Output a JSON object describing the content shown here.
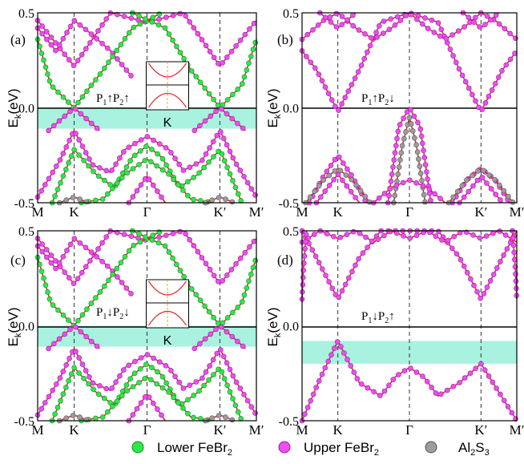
{
  "colors": {
    "band": "#e6262b",
    "lower_fill": "#2ee84a",
    "lower_edge": "#0d8f22",
    "upper_fill": "#ec4ef0",
    "upper_edge": "#9a1ca0",
    "al_fill": "#9d9d9d",
    "al_edge": "#555555",
    "gap": "#a8f2df",
    "fermi": "#000000",
    "dash": "#333333"
  },
  "legend": [
    {
      "key": "lower",
      "label_main": "Lower FeBr",
      "label_sub": "2"
    },
    {
      "key": "upper",
      "label_main": "Upper FeBr",
      "label_sub": "2"
    },
    {
      "key": "al",
      "label_main": "Al",
      "label_sub1": "2",
      "label_mid": "S",
      "label_sub2": "3"
    }
  ],
  "chart_data": [
    {
      "panel": "(a)",
      "type": "line",
      "xticks": [
        "M",
        "K",
        "Γ",
        "K′",
        "M′"
      ],
      "xtick_pos": [
        0,
        0.5,
        1.5,
        2.5,
        3
      ],
      "ylabel_main": "E",
      "ylabel_sub": "k",
      "ylabel_unit": "(eV)",
      "ylim": [
        -0.5,
        0.5
      ],
      "yticks": [
        "-0.5",
        "0.0",
        "0.5"
      ],
      "gap": [
        -0.11,
        0.0
      ],
      "config": {
        "p1": "P",
        "s1": "1",
        "a1": "↑",
        "p2": "P",
        "s2": "2",
        "a2": "↑"
      },
      "inset": {
        "label": "K"
      },
      "series": [
        {
          "key": "upper",
          "x": [
            0,
            0.5,
            1.0,
            1.5,
            2.0,
            2.5,
            3.0
          ],
          "y": [
            0.46,
            0.22,
            0.5,
            0.45,
            0.5,
            0.22,
            0.46
          ]
        },
        {
          "key": "upper",
          "x": [
            0,
            0.25,
            0.5,
            0.7,
            1.0,
            1.3
          ],
          "y": [
            0.42,
            0.3,
            0.46,
            0.4,
            0.3,
            0.16
          ]
        },
        {
          "key": "lower",
          "x": [
            0,
            0.18,
            0.5,
            0.9,
            1.3,
            1.7
          ],
          "y": [
            0.36,
            0.12,
            0.0,
            0.2,
            0.42,
            0.5
          ]
        },
        {
          "key": "lower",
          "x": [
            1.3,
            1.75,
            2.1,
            2.5,
            2.8,
            3.0
          ],
          "y": [
            0.5,
            0.42,
            0.2,
            0.0,
            0.12,
            0.36
          ]
        },
        {
          "key": "upper",
          "x": [
            0,
            0.3,
            0.5,
            0.75,
            1.0,
            1.2,
            1.5,
            1.8,
            2.0,
            2.25,
            2.5,
            2.7,
            3.0
          ],
          "y": [
            -0.47,
            -0.28,
            -0.12,
            -0.3,
            -0.34,
            -0.22,
            -0.15,
            -0.22,
            -0.33,
            -0.28,
            -0.12,
            -0.28,
            -0.47
          ]
        },
        {
          "key": "upper",
          "x": [
            0.15,
            0.5,
            0.85
          ],
          "y": [
            -0.12,
            0.0,
            -0.12
          ]
        },
        {
          "key": "upper",
          "x": [
            2.15,
            2.5,
            2.85
          ],
          "y": [
            -0.12,
            0.0,
            -0.12
          ]
        },
        {
          "key": "lower",
          "x": [
            0.2,
            0.5,
            0.8,
            1.05,
            1.3,
            1.5,
            1.7,
            1.95,
            2.2,
            2.5,
            2.8
          ],
          "y": [
            -0.5,
            -0.22,
            -0.35,
            -0.42,
            -0.26,
            -0.2,
            -0.26,
            -0.42,
            -0.35,
            -0.22,
            -0.5
          ]
        },
        {
          "key": "lower",
          "x": [
            0.6,
            0.9,
            1.2,
            1.5,
            1.8,
            2.1,
            2.4
          ],
          "y": [
            -0.5,
            -0.48,
            -0.35,
            -0.27,
            -0.35,
            -0.48,
            -0.5
          ]
        },
        {
          "key": "upper",
          "x": [
            1.25,
            1.5,
            1.75
          ],
          "y": [
            -0.5,
            -0.36,
            -0.5
          ]
        },
        {
          "key": "al",
          "x": [
            0.3,
            0.5,
            0.7
          ],
          "y": [
            -0.5,
            -0.47,
            -0.5
          ]
        },
        {
          "key": "al",
          "x": [
            2.3,
            2.5,
            2.7
          ],
          "y": [
            -0.5,
            -0.47,
            -0.5
          ]
        }
      ]
    },
    {
      "panel": "(b)",
      "type": "line",
      "xticks": [
        "M",
        "K",
        "Γ",
        "K′",
        "M′"
      ],
      "xtick_pos": [
        0,
        0.5,
        1.5,
        2.5,
        3
      ],
      "ylabel_main": "E",
      "ylabel_sub": "k",
      "ylabel_unit": "(eV)",
      "ylim": [
        -0.5,
        0.5
      ],
      "yticks": [
        "-0.5",
        "0.0",
        "0.5"
      ],
      "gap": null,
      "config": {
        "p1": "P",
        "s1": "1",
        "a1": "↑",
        "p2": "P",
        "s2": "2",
        "a2": "↓"
      },
      "inset": null,
      "series": [
        {
          "key": "upper",
          "x": [
            0,
            0.2,
            0.5,
            0.8,
            1.1,
            1.5,
            1.9,
            2.2,
            2.5,
            2.8,
            3.0
          ],
          "y": [
            0.3,
            0.2,
            -0.02,
            0.2,
            0.45,
            0.5,
            0.45,
            0.2,
            -0.02,
            0.2,
            0.3
          ]
        },
        {
          "key": "upper",
          "x": [
            0,
            0.3,
            0.5,
            0.75,
            1.0,
            1.25,
            1.5,
            1.75,
            2.0,
            2.25,
            2.5,
            2.7,
            3.0
          ],
          "y": [
            0.36,
            0.46,
            0.5,
            0.42,
            0.36,
            0.42,
            0.5,
            0.42,
            0.36,
            0.42,
            0.5,
            0.46,
            0.36
          ]
        },
        {
          "key": "upper",
          "x": [
            0.25,
            0.5,
            0.75
          ],
          "y": [
            0.5,
            0.42,
            0.5
          ]
        },
        {
          "key": "upper",
          "x": [
            2.25,
            2.5,
            2.75
          ],
          "y": [
            0.5,
            0.42,
            0.5
          ]
        },
        {
          "key": "upper",
          "x": [
            1.2,
            1.35,
            1.5,
            1.65,
            1.8
          ],
          "y": [
            -0.5,
            -0.1,
            0.0,
            -0.1,
            -0.5
          ]
        },
        {
          "key": "al",
          "x": [
            1.28,
            1.4,
            1.5,
            1.6,
            1.72
          ],
          "y": [
            -0.5,
            -0.2,
            -0.05,
            -0.2,
            -0.5
          ]
        },
        {
          "key": "upper",
          "x": [
            0.1,
            0.3,
            0.5,
            0.7,
            0.9
          ],
          "y": [
            -0.5,
            -0.36,
            -0.25,
            -0.36,
            -0.5
          ]
        },
        {
          "key": "al",
          "x": [
            0.05,
            0.3,
            0.5,
            0.7,
            0.95
          ],
          "y": [
            -0.5,
            -0.38,
            -0.32,
            -0.38,
            -0.5
          ]
        },
        {
          "key": "upper",
          "x": [
            0.2,
            0.5,
            0.8
          ],
          "y": [
            -0.5,
            -0.35,
            -0.5
          ]
        },
        {
          "key": "upper",
          "x": [
            2.1,
            2.3,
            2.5,
            2.7,
            2.9
          ],
          "y": [
            -0.5,
            -0.38,
            -0.32,
            -0.38,
            -0.5
          ]
        },
        {
          "key": "al",
          "x": [
            2.05,
            2.3,
            2.5,
            2.7,
            2.95
          ],
          "y": [
            -0.5,
            -0.38,
            -0.32,
            -0.38,
            -0.5
          ]
        },
        {
          "key": "upper",
          "x": [
            2.2,
            2.5,
            2.8
          ],
          "y": [
            -0.5,
            -0.36,
            -0.5
          ]
        },
        {
          "key": "upper",
          "x": [
            1.0,
            1.25,
            1.5,
            1.75,
            2.0
          ],
          "y": [
            -0.5,
            -0.42,
            -0.38,
            -0.42,
            -0.5
          ]
        }
      ]
    },
    {
      "panel": "(c)",
      "type": "line",
      "xticks": [
        "M",
        "K",
        "Γ",
        "K′",
        "M′"
      ],
      "xtick_pos": [
        0,
        0.5,
        1.5,
        2.5,
        3
      ],
      "ylabel_main": "E",
      "ylabel_sub": "k",
      "ylabel_unit": "(eV)",
      "ylim": [
        -0.5,
        0.5
      ],
      "yticks": [
        "-0.5",
        "0.0",
        "0.5"
      ],
      "gap": [
        -0.11,
        0.0
      ],
      "config": {
        "p1": "P",
        "s1": "1",
        "a1": "↓",
        "p2": "P",
        "s2": "2",
        "a2": "↓"
      },
      "inset": {
        "label": "K"
      },
      "series": [
        {
          "key": "upper",
          "x": [
            0,
            0.5,
            1.0,
            1.5,
            2.0,
            2.5,
            3.0
          ],
          "y": [
            0.46,
            0.22,
            0.5,
            0.45,
            0.5,
            0.22,
            0.46
          ]
        },
        {
          "key": "upper",
          "x": [
            0,
            0.25,
            0.5,
            0.7,
            1.0,
            1.3
          ],
          "y": [
            0.42,
            0.3,
            0.46,
            0.4,
            0.3,
            0.16
          ]
        },
        {
          "key": "lower",
          "x": [
            0,
            0.18,
            0.5,
            0.9,
            1.3,
            1.7
          ],
          "y": [
            0.36,
            0.12,
            0.0,
            0.2,
            0.42,
            0.5
          ]
        },
        {
          "key": "lower",
          "x": [
            1.3,
            1.75,
            2.1,
            2.5,
            2.8,
            3.0
          ],
          "y": [
            0.5,
            0.42,
            0.2,
            0.0,
            0.12,
            0.36
          ]
        },
        {
          "key": "upper",
          "x": [
            0,
            0.3,
            0.5,
            0.75,
            1.0,
            1.2,
            1.5,
            1.8,
            2.0,
            2.25,
            2.5,
            2.7,
            3.0
          ],
          "y": [
            -0.47,
            -0.28,
            -0.12,
            -0.3,
            -0.34,
            -0.22,
            -0.15,
            -0.22,
            -0.33,
            -0.28,
            -0.12,
            -0.28,
            -0.47
          ]
        },
        {
          "key": "upper",
          "x": [
            0.15,
            0.5,
            0.85
          ],
          "y": [
            -0.12,
            0.0,
            -0.12
          ]
        },
        {
          "key": "upper",
          "x": [
            2.15,
            2.5,
            2.85
          ],
          "y": [
            -0.12,
            0.0,
            -0.12
          ]
        },
        {
          "key": "lower",
          "x": [
            0.2,
            0.5,
            0.8,
            1.05,
            1.3,
            1.5,
            1.7,
            1.95,
            2.2,
            2.5,
            2.8
          ],
          "y": [
            -0.5,
            -0.22,
            -0.35,
            -0.42,
            -0.26,
            -0.2,
            -0.26,
            -0.42,
            -0.35,
            -0.22,
            -0.5
          ]
        },
        {
          "key": "lower",
          "x": [
            0.6,
            0.9,
            1.2,
            1.5,
            1.8,
            2.1,
            2.4
          ],
          "y": [
            -0.5,
            -0.48,
            -0.35,
            -0.27,
            -0.35,
            -0.48,
            -0.5
          ]
        },
        {
          "key": "upper",
          "x": [
            1.25,
            1.5,
            1.75
          ],
          "y": [
            -0.5,
            -0.36,
            -0.5
          ]
        },
        {
          "key": "al",
          "x": [
            0.3,
            0.5,
            0.7
          ],
          "y": [
            -0.5,
            -0.47,
            -0.5
          ]
        },
        {
          "key": "al",
          "x": [
            2.3,
            2.5,
            2.7
          ],
          "y": [
            -0.5,
            -0.47,
            -0.5
          ]
        }
      ]
    },
    {
      "panel": "(d)",
      "type": "line",
      "xticks": [
        "M",
        "K",
        "Γ",
        "K′",
        "M′"
      ],
      "xtick_pos": [
        0,
        0.5,
        1.5,
        2.5,
        3
      ],
      "ylabel_main": "E",
      "ylabel_sub": "k",
      "ylabel_unit": "(eV)",
      "ylim": [
        -0.5,
        0.5
      ],
      "yticks": [
        "-0.5",
        "0.0",
        "0.5"
      ],
      "gap": [
        -0.2,
        -0.08
      ],
      "config": {
        "p1": "P",
        "s1": "1",
        "a1": "↓",
        "p2": "P",
        "s2": "2",
        "a2": "↑"
      },
      "inset": null,
      "series": [
        {
          "key": "upper",
          "x": [
            0,
            0.2,
            0.5,
            0.8,
            1.1,
            1.5,
            1.9,
            2.2,
            2.5,
            2.8,
            3.0
          ],
          "y": [
            0.5,
            0.36,
            0.14,
            0.36,
            0.5,
            0.58,
            0.5,
            0.36,
            0.14,
            0.36,
            0.5
          ]
        },
        {
          "key": "upper",
          "x": [
            0,
            0.25,
            0.5,
            0.75,
            1.0,
            1.25,
            1.5,
            1.75,
            2.0,
            2.25,
            2.5,
            2.75,
            3.0
          ],
          "y": [
            0.44,
            0.5,
            0.46,
            0.5,
            0.44,
            0.5,
            0.46,
            0.5,
            0.44,
            0.5,
            0.46,
            0.5,
            0.44
          ]
        },
        {
          "key": "upper",
          "x": [
            0,
            0.25,
            0.5,
            0.8,
            1.1,
            1.3,
            1.5,
            1.7,
            1.9,
            2.2,
            2.5,
            2.75,
            3.0
          ],
          "y": [
            -0.5,
            -0.28,
            -0.08,
            -0.3,
            -0.37,
            -0.27,
            -0.22,
            -0.27,
            -0.37,
            -0.3,
            -0.2,
            -0.35,
            -0.5
          ]
        },
        {
          "key": "upper",
          "x": [
            0.0,
            0.02,
            0.06
          ],
          "y": [
            0.14,
            0.3,
            0.5
          ]
        },
        {
          "key": "upper",
          "x": [
            2.94,
            2.98,
            3.0
          ],
          "y": [
            0.5,
            0.3,
            0.14
          ]
        }
      ]
    }
  ]
}
